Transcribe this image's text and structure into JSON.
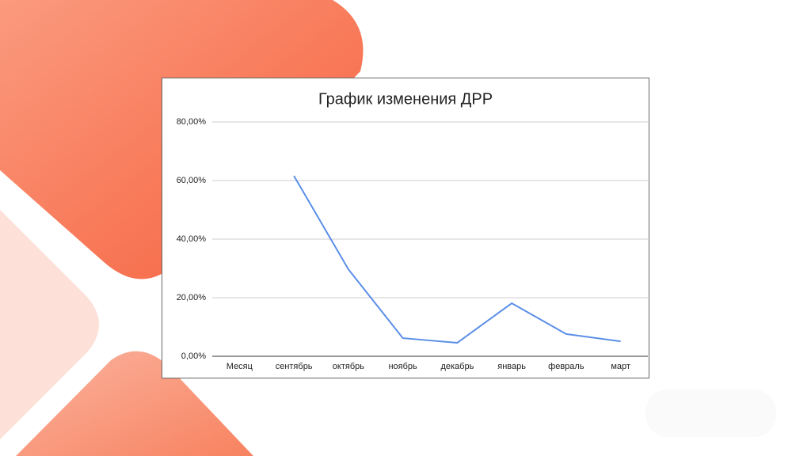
{
  "chart_data": {
    "type": "line",
    "title": "График изменения ДРР",
    "categories": [
      "Месяц",
      "сентябрь",
      "октябрь",
      "ноябрь",
      "декабрь",
      "январь",
      "февраль",
      "март"
    ],
    "values": [
      null,
      61.6,
      29.7,
      6.2,
      4.6,
      18.1,
      7.6,
      5.1
    ],
    "color": "#5b8fe6",
    "ylim": [
      0,
      80
    ],
    "yticks": [
      {
        "value": 0,
        "label": "0,00%"
      },
      {
        "value": 20,
        "label": "20,00%"
      },
      {
        "value": 40,
        "label": "40,00%"
      },
      {
        "value": 60,
        "label": "60,00%"
      },
      {
        "value": 80,
        "label": "80,00%"
      }
    ],
    "grid": true
  }
}
